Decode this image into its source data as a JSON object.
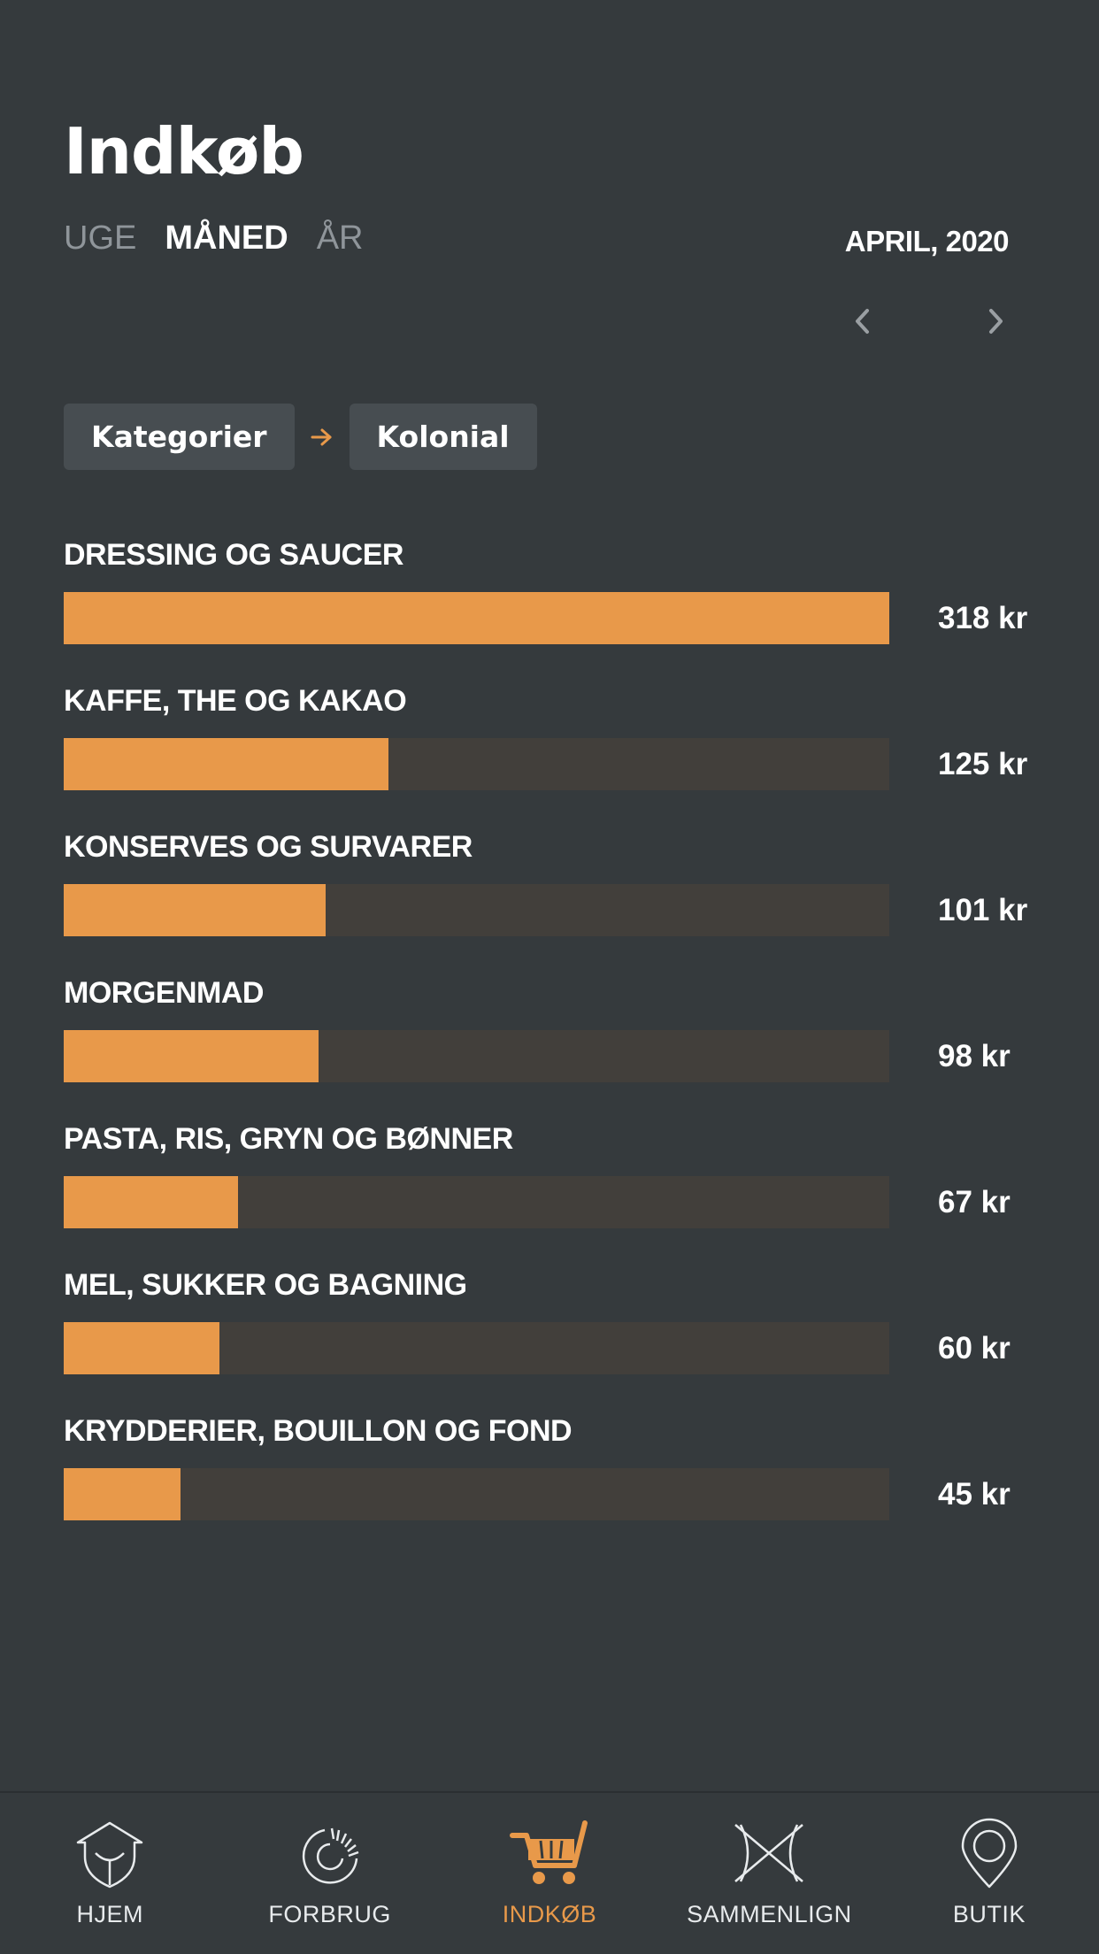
{
  "colors": {
    "background": "#353a3d",
    "accent": "#e8994a",
    "track": "#423f3b",
    "crumb_bg": "#474d51"
  },
  "header": {
    "title": "Indkøb",
    "period_tabs": [
      {
        "label": "UGE",
        "active": false
      },
      {
        "label": "MÅNED",
        "active": true
      },
      {
        "label": "ÅR",
        "active": false
      }
    ],
    "date": "APRIL, 2020",
    "prev_icon": "chevron-left-icon",
    "next_icon": "chevron-right-icon"
  },
  "breadcrumb": {
    "items": [
      "Kategorier",
      "Kolonial"
    ],
    "separator_icon": "arrow-right-icon"
  },
  "categories": [
    {
      "name": "DRESSING OG SAUCER",
      "amount_label": "318 kr",
      "value": 318
    },
    {
      "name": "KAFFE, THE OG KAKAO",
      "amount_label": "125 kr",
      "value": 125
    },
    {
      "name": "KONSERVES OG SURVARER",
      "amount_label": "101 kr",
      "value": 101
    },
    {
      "name": "MORGENMAD",
      "amount_label": "98 kr",
      "value": 98
    },
    {
      "name": "PASTA, RIS, GRYN OG BØNNER",
      "amount_label": "67 kr",
      "value": 67
    },
    {
      "name": "MEL, SUKKER OG BAGNING",
      "amount_label": "60 kr",
      "value": 60
    },
    {
      "name": "KRYDDERIER, BOUILLON OG FOND",
      "amount_label": "45 kr",
      "value": 45
    }
  ],
  "tabbar": {
    "items": [
      {
        "label": "HJEM",
        "icon": "home-icon",
        "active": false
      },
      {
        "label": "FORBRUG",
        "icon": "gauge-icon",
        "active": false
      },
      {
        "label": "INDKØB",
        "icon": "cart-icon",
        "active": true
      },
      {
        "label": "SAMMENLIGN",
        "icon": "compare-icon",
        "active": false
      },
      {
        "label": "BUTIK",
        "icon": "location-pin-icon",
        "active": false
      }
    ]
  }
}
